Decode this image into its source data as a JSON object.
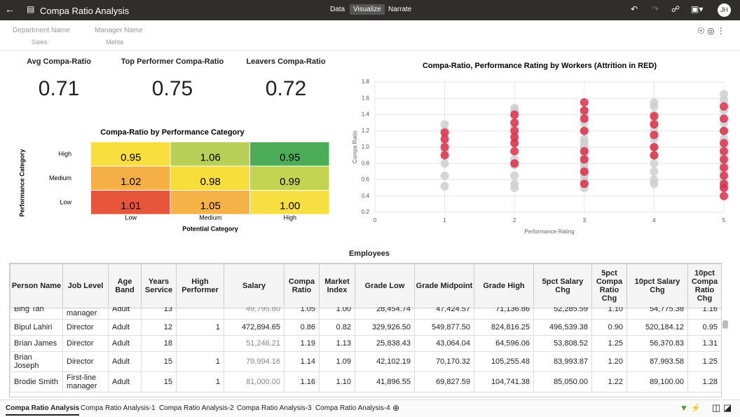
{
  "header": {
    "title": "Compa Ratio Analysis",
    "tabs": [
      "Data",
      "Visualize",
      "Narrate"
    ],
    "avatar": "JH"
  },
  "filters": [
    {
      "label": "Department Name",
      "value": "Sales"
    },
    {
      "label": "Manager Name",
      "value": "Mehta"
    }
  ],
  "kpis": [
    {
      "title": "Avg Compa-Ratio",
      "value": "0.71"
    },
    {
      "title": "Top Performer Compa-Ratio",
      "value": "0.75"
    },
    {
      "title": "Leavers Compa-Ratio",
      "value": "0.72"
    }
  ],
  "chart_data": [
    {
      "type": "heatmap",
      "title": "Compa-Ratio by Performance Category",
      "x_label": "Potential Category",
      "y_label": "Performance Category",
      "x": [
        "Low",
        "Medium",
        "High"
      ],
      "y": [
        "High",
        "Medium",
        "Low"
      ],
      "values": [
        [
          0.95,
          1.06,
          0.95
        ],
        [
          1.02,
          0.98,
          0.99
        ],
        [
          1.01,
          1.05,
          1.0
        ]
      ],
      "value_labels": [
        [
          "0.95",
          "1.06",
          "0.95"
        ],
        [
          "1.02",
          "0.98",
          "0.99"
        ],
        [
          "1.01",
          "1.05",
          "1.00"
        ]
      ],
      "colors": [
        [
          "#f8df3e",
          "#b8d057",
          "#4dac57"
        ],
        [
          "#f4b044",
          "#f7de3b",
          "#c1d34f"
        ],
        [
          "#e7553a",
          "#f5b247",
          "#f9e042"
        ]
      ]
    },
    {
      "type": "scatter",
      "title": "Compa-Ratio, Performance Rating by Workers (Attrition in RED)",
      "x_label": "Performance Rating",
      "y_label": "Compa Ratio",
      "xlim": [
        0,
        5
      ],
      "xticks": [
        0,
        1,
        2,
        3,
        4,
        5
      ],
      "ylim": [
        0.2,
        1.8
      ],
      "yticks": [
        0.2,
        0.4,
        0.6,
        0.8,
        {
          "value": 1,
          "label": "1.0"
        },
        1.2,
        1.4,
        1.6,
        1.8
      ],
      "grid": true,
      "series": [
        {
          "color": "#cfcfd2",
          "x": [
            1,
            1,
            1,
            1,
            1,
            1,
            1,
            2,
            2,
            2,
            2,
            2,
            2,
            2,
            2,
            2,
            2,
            2,
            3,
            3,
            3,
            3,
            3,
            3,
            3,
            3,
            3,
            3,
            3,
            3,
            3,
            3,
            3,
            3,
            3,
            4,
            4,
            4,
            4,
            4,
            4,
            4,
            4,
            4,
            4,
            4,
            4,
            5,
            5,
            5,
            5,
            5,
            5,
            5,
            5,
            5,
            5,
            5,
            5
          ],
          "values": [
            0.52,
            0.65,
            0.8,
            0.95,
            1.05,
            1.2,
            1.28,
            0.5,
            0.55,
            0.65,
            0.78,
            0.85,
            1.05,
            1.15,
            1.25,
            1.38,
            1.45,
            1.48,
            0.5,
            0.6,
            0.7,
            0.8,
            0.9,
            1.0,
            1.1,
            1.2,
            1.3,
            1.4,
            1.45,
            0.55,
            0.65,
            0.75,
            0.85,
            0.95,
            1.05,
            0.55,
            0.6,
            0.7,
            0.8,
            0.9,
            1.0,
            1.1,
            1.2,
            1.3,
            1.4,
            1.5,
            1.55,
            0.5,
            0.6,
            0.7,
            0.8,
            0.9,
            1.0,
            1.1,
            1.2,
            1.3,
            1.45,
            1.58,
            1.65
          ]
        },
        {
          "color": "#df2e45",
          "x": [
            1,
            1,
            1,
            1,
            2,
            2,
            2,
            2,
            2,
            2,
            2,
            3,
            3,
            3,
            3,
            3,
            3,
            3,
            3,
            4,
            4,
            4,
            4,
            4,
            5,
            5,
            5,
            5,
            5,
            5,
            5,
            5,
            5,
            5,
            5
          ],
          "values": [
            0.9,
            1.0,
            1.1,
            1.18,
            0.8,
            0.95,
            1.05,
            1.12,
            1.2,
            1.3,
            1.4,
            0.55,
            0.7,
            0.85,
            0.95,
            1.2,
            1.35,
            1.45,
            1.55,
            0.9,
            1.0,
            1.15,
            1.28,
            1.38,
            0.4,
            0.5,
            0.55,
            0.65,
            0.75,
            0.85,
            0.95,
            1.05,
            1.2,
            1.35,
            1.5
          ]
        }
      ]
    }
  ],
  "table": {
    "title": "Employees",
    "columns": [
      "Person Name",
      "Job Level",
      "Age Band",
      "Years Service",
      "High Performer",
      "Salary",
      "Compa Ratio",
      "Market Index",
      "Grade Low",
      "Grade Midpoint",
      "Grade High",
      "5pct Salary Chg",
      "5pct Compa Ratio Chg",
      "10pct Salary Chg",
      "10pct Compa Ratio Chg"
    ],
    "rows": [
      [
        "Bing Tan",
        "First-line manager",
        "Adult",
        "13",
        null,
        "49,795.80",
        "1.05",
        "1.00",
        "28,454.74",
        "47,424.57",
        "71,136.86",
        "52,285.59",
        "1.10",
        "54,775.38",
        "1.16"
      ],
      [
        "Bipul Lahiri",
        "Director",
        "Adult",
        "12",
        "1",
        "472,894.65",
        "0.86",
        "0.82",
        "329,926.50",
        "549,877.50",
        "824,816.25",
        "496,539.38",
        "0.90",
        "520,184.12",
        "0.95"
      ],
      [
        "Brian James",
        "Director",
        "Adult",
        "18",
        null,
        "51,246.21",
        "1.19",
        "1.13",
        "25,838.43",
        "43,064.04",
        "64,596.06",
        "53,808.52",
        "1.25",
        "56,370.83",
        "1.31"
      ],
      [
        "Brian Joseph",
        "Director",
        "Adult",
        "15",
        "1",
        "79,994.16",
        "1.14",
        "1.09",
        "42,102.19",
        "70,170.32",
        "105,255.48",
        "83,993.87",
        "1.20",
        "87,993.58",
        "1.25"
      ],
      [
        "Brodie Smith",
        "First-line manager",
        "Adult",
        "15",
        "1",
        "81,000.00",
        "1.16",
        "1.10",
        "41,896.55",
        "69,827.59",
        "104,741.38",
        "85,050.00",
        "1.22",
        "89,100.00",
        "1.28"
      ]
    ]
  },
  "canvas_tabs": [
    "Compa Ratio Analysis",
    "Compa Ratio Analysis-1",
    "Compa Ratio Analysis-2",
    "Compa Ratio Analysis-3",
    "Compa Ratio Analysis-4"
  ]
}
